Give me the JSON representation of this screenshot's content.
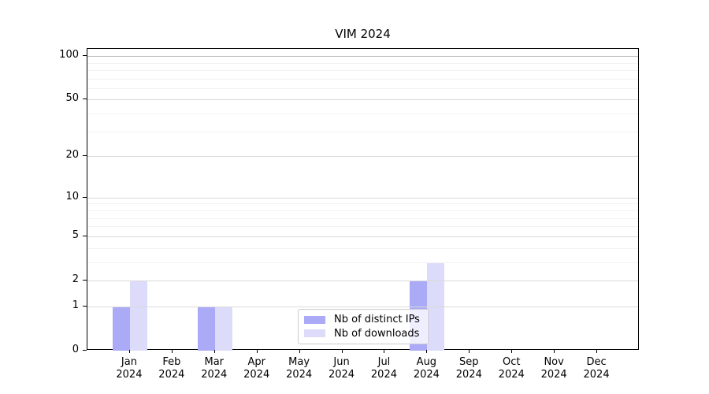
{
  "chart_data": {
    "type": "bar",
    "title": "VIM 2024",
    "categories": [
      {
        "month": "Jan",
        "year": "2024"
      },
      {
        "month": "Feb",
        "year": "2024"
      },
      {
        "month": "Mar",
        "year": "2024"
      },
      {
        "month": "Apr",
        "year": "2024"
      },
      {
        "month": "May",
        "year": "2024"
      },
      {
        "month": "Jun",
        "year": "2024"
      },
      {
        "month": "Jul",
        "year": "2024"
      },
      {
        "month": "Aug",
        "year": "2024"
      },
      {
        "month": "Sep",
        "year": "2024"
      },
      {
        "month": "Oct",
        "year": "2024"
      },
      {
        "month": "Nov",
        "year": "2024"
      },
      {
        "month": "Dec",
        "year": "2024"
      }
    ],
    "series": [
      {
        "name": "Nb of distinct IPs",
        "color": "#abaaf7",
        "values": [
          1,
          0,
          1,
          0,
          0,
          0,
          0,
          2,
          0,
          0,
          0,
          0
        ]
      },
      {
        "name": "Nb of downloads",
        "color": "#dcdbfa",
        "values": [
          2,
          0,
          1,
          0,
          0,
          0,
          0,
          3,
          0,
          0,
          0,
          0
        ]
      }
    ],
    "xlabel": "",
    "ylabel": "",
    "yscale": "log1p",
    "ylim": [
      0,
      112
    ],
    "yticks": [
      0,
      1,
      2,
      5,
      10,
      20,
      50,
      100
    ],
    "minor_yticks": [
      3,
      4,
      6,
      7,
      8,
      9,
      30,
      40,
      60,
      70,
      80,
      90
    ],
    "grid": true,
    "legend_position": "inside-bottom-center"
  },
  "colors": {
    "grid_major": "#d9d9d9",
    "grid_top": "#b9b9b9",
    "grid_minor": "#f2f2f2",
    "axis": "#000000",
    "legend_border": "#cccccc"
  }
}
